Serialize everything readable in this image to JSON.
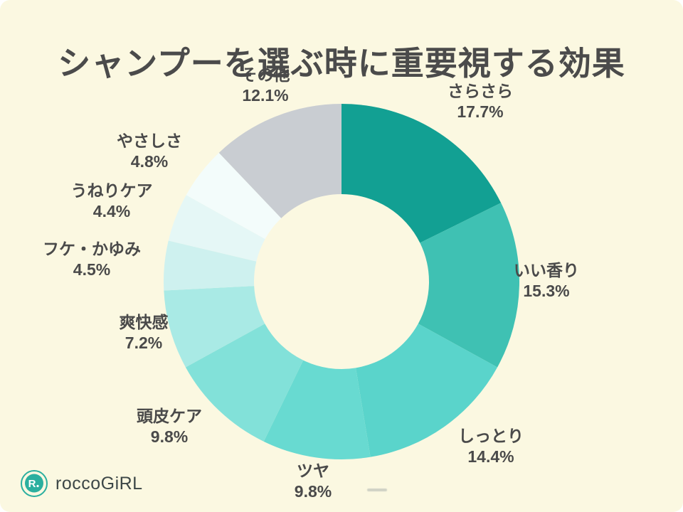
{
  "page": {
    "title": "シャンプーを選ぶ時に重要視する効果",
    "background_color": "#FBF8E1",
    "title_color": "#4B4B4B"
  },
  "brand": {
    "logo_text": "roccoGiRL",
    "logo_icon": "rocco-r-speech-bubble-icon",
    "logo_mark_text": "R.",
    "logo_color": "#2BAF9F"
  },
  "chart_data": {
    "type": "pie",
    "variant": "donut",
    "title": "シャンプーを選ぶ時に重要視する効果",
    "unit": "%",
    "start_angle_deg": 0,
    "direction": "clockwise",
    "legend_position": "labels-around-donut",
    "hole_color": "#FBF8E1",
    "segments": [
      {
        "label": "さらさら",
        "value": 17.7,
        "pct": "17.7%",
        "color": "#12A093"
      },
      {
        "label": "いい香り",
        "value": 15.3,
        "pct": "15.3%",
        "color": "#3FC1B3"
      },
      {
        "label": "しっとり",
        "value": 14.4,
        "pct": "14.4%",
        "color": "#5AD4CB"
      },
      {
        "label": "ツヤ",
        "value": 9.8,
        "pct": "9.8%",
        "color": "#68DAD1"
      },
      {
        "label": "頭皮ケア",
        "value": 9.8,
        "pct": "9.8%",
        "color": "#82E1D9"
      },
      {
        "label": "爽快感",
        "value": 7.2,
        "pct": "7.2%",
        "color": "#A9EAE5"
      },
      {
        "label": "フケ・かゆみ",
        "value": 4.5,
        "pct": "4.5%",
        "color": "#CEF1EF"
      },
      {
        "label": "うねりケア",
        "value": 4.4,
        "pct": "4.4%",
        "color": "#E5F7F6"
      },
      {
        "label": "やさしさ",
        "value": 4.8,
        "pct": "4.8%",
        "color": "#F3FCFB"
      },
      {
        "label": "その他",
        "value": 12.1,
        "pct": "12.1%",
        "color": "#C9CDD2"
      }
    ]
  }
}
